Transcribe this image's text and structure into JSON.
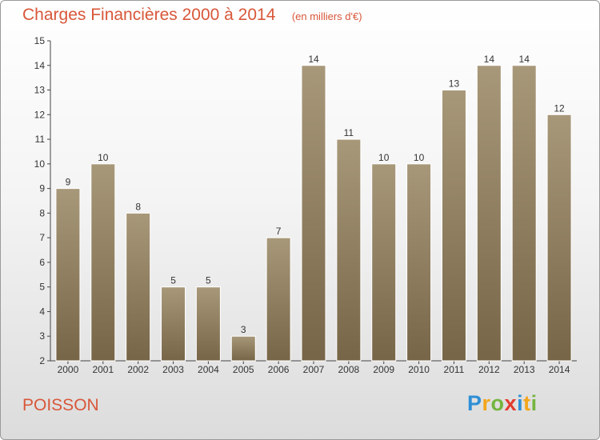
{
  "header": {
    "title": "Charges Financières 2000 à 2014",
    "subtitle": "(en milliers d'€)"
  },
  "footer": {
    "commune": "POISSON",
    "logo_letters": [
      "P",
      "r",
      "o",
      "x",
      "i",
      "t",
      "i"
    ],
    "logo_colors": [
      "#2f8fd6",
      "#f3a51b",
      "#74b43f",
      "#e23b2e",
      "#2f8fd6",
      "#f3a51b",
      "#74b43f"
    ]
  },
  "chart_data": {
    "type": "bar",
    "title": "Charges Financières 2000 à 2014",
    "subtitle": "(en milliers d'€)",
    "categories": [
      "2000",
      "2001",
      "2002",
      "2003",
      "2004",
      "2005",
      "2006",
      "2007",
      "2008",
      "2009",
      "2010",
      "2011",
      "2012",
      "2013",
      "2014"
    ],
    "values": [
      9,
      10,
      8,
      5,
      5,
      3,
      7,
      14,
      11,
      10,
      10,
      13,
      14,
      14,
      12
    ],
    "ylim": [
      2,
      15
    ],
    "yticks": [
      2,
      3,
      4,
      5,
      6,
      7,
      8,
      9,
      10,
      11,
      12,
      13,
      14,
      15
    ],
    "bar_color_top": "#a8987a",
    "bar_color_bottom": "#776547",
    "grid": false,
    "legend": "none"
  }
}
